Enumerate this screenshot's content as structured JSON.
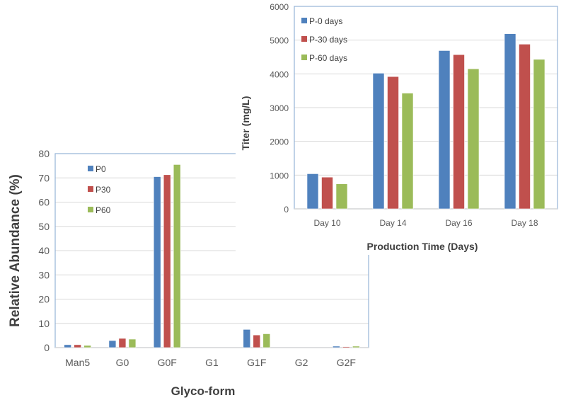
{
  "chart_data": [
    {
      "type": "bar",
      "xlabel": "Glyco-form",
      "ylabel": "Relative Abundance (%)",
      "categories": [
        "Man5",
        "G0",
        "G0F",
        "G1",
        "G1F",
        "G2",
        "G2F"
      ],
      "ylim": [
        0,
        80
      ],
      "yticks": [
        0,
        10,
        20,
        30,
        40,
        50,
        60,
        70,
        80
      ],
      "grid": true,
      "legend": "top-left",
      "series": [
        {
          "name": "P0",
          "color": "#4f81bd",
          "values": [
            1.2,
            2.9,
            70.5,
            0,
            7.5,
            0,
            0.6
          ]
        },
        {
          "name": "P30",
          "color": "#c0504d",
          "values": [
            1.2,
            3.8,
            71.3,
            0,
            5.2,
            0,
            0.4
          ]
        },
        {
          "name": "P60",
          "color": "#9bbb59",
          "values": [
            0.9,
            3.5,
            75.5,
            0,
            5.7,
            0,
            0.6
          ]
        }
      ]
    },
    {
      "type": "bar",
      "xlabel": "Production Time (Days)",
      "ylabel": "Titer (mg/L)",
      "categories": [
        "Day 10",
        "Day 14",
        "Day 16",
        "Day 18"
      ],
      "ylim": [
        0,
        6000
      ],
      "yticks": [
        0,
        1000,
        2000,
        3000,
        4000,
        5000,
        6000
      ],
      "grid": true,
      "legend": "top-left",
      "series": [
        {
          "name": "P-0 days",
          "color": "#4f81bd",
          "values": [
            1040,
            4020,
            4690,
            5190
          ]
        },
        {
          "name": "P-30 days",
          "color": "#c0504d",
          "values": [
            940,
            3920,
            4570,
            4880
          ]
        },
        {
          "name": "P-60 days",
          "color": "#9bbb59",
          "values": [
            740,
            3430,
            4150,
            4430
          ]
        }
      ]
    }
  ]
}
